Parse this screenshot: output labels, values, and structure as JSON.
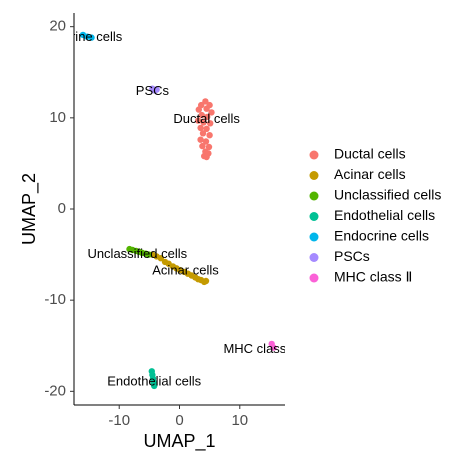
{
  "chart_data": {
    "type": "scatter",
    "title": "",
    "xlabel": "UMAP_1",
    "ylabel": "UMAP_2",
    "xlim": [
      -17.5,
      17.5
    ],
    "ylim": [
      -21.5,
      21.5
    ],
    "x_ticks": [
      -10,
      0,
      10
    ],
    "y_ticks": [
      -20,
      -10,
      0,
      10,
      20
    ],
    "x_tick_labels": [
      "-10",
      "0",
      "10"
    ],
    "y_tick_labels": [
      "-20",
      "-10",
      "0",
      "10",
      "20"
    ],
    "grid": false,
    "legend_position": "right",
    "series": [
      {
        "name": "Ductal cells",
        "color": "#F8766D",
        "points": [
          [
            3.6,
            11.4
          ],
          [
            4.3,
            11.8
          ],
          [
            5.0,
            11.4
          ],
          [
            3.2,
            10.9
          ],
          [
            4.5,
            11.0
          ],
          [
            5.3,
            10.6
          ],
          [
            3.7,
            10.3
          ],
          [
            4.6,
            10.1
          ],
          [
            3.1,
            9.7
          ],
          [
            4.0,
            9.5
          ],
          [
            5.1,
            9.4
          ],
          [
            3.5,
            8.9
          ],
          [
            4.5,
            8.8
          ],
          [
            3.9,
            8.3
          ],
          [
            5.0,
            8.1
          ],
          [
            3.5,
            7.6
          ],
          [
            4.4,
            7.4
          ],
          [
            3.8,
            6.9
          ],
          [
            4.9,
            6.8
          ],
          [
            4.3,
            6.3
          ],
          [
            4.1,
            5.8
          ],
          [
            4.8,
            6.1
          ],
          [
            4.5,
            5.7
          ]
        ],
        "label": "Ductal cells",
        "label_xy": [
          4.5,
          9.8
        ]
      },
      {
        "name": "Acinar cells",
        "color": "#C49A00",
        "points": [
          [
            -4.5,
            -5.0
          ],
          [
            -3.8,
            -5.2
          ],
          [
            -3.1,
            -5.4
          ],
          [
            -2.4,
            -5.8
          ],
          [
            -1.8,
            -6.0
          ],
          [
            -1.1,
            -6.3
          ],
          [
            -0.5,
            -6.5
          ],
          [
            0.1,
            -6.7
          ],
          [
            0.8,
            -6.9
          ],
          [
            1.4,
            -7.1
          ],
          [
            2.0,
            -7.3
          ],
          [
            2.6,
            -7.5
          ],
          [
            3.1,
            -7.7
          ],
          [
            3.6,
            -7.8
          ],
          [
            4.1,
            -8.0
          ],
          [
            4.4,
            -7.9
          ]
        ],
        "label": "Acinar cells",
        "label_xy": [
          1.0,
          -6.8
        ]
      },
      {
        "name": "Unclassified cells",
        "color": "#53B400",
        "points": [
          [
            -8.3,
            -4.4
          ],
          [
            -7.8,
            -4.5
          ],
          [
            -7.2,
            -4.6
          ],
          [
            -6.7,
            -4.7
          ],
          [
            -6.2,
            -4.8
          ],
          [
            -5.6,
            -4.9
          ],
          [
            -5.1,
            -5.0
          ]
        ],
        "label": "Unclassified cells",
        "label_xy": [
          -7.0,
          -5.0
        ]
      },
      {
        "name": "Endothelial cells",
        "color": "#00C094",
        "points": [
          [
            -4.6,
            -17.8
          ],
          [
            -4.5,
            -18.2
          ],
          [
            -4.4,
            -18.6
          ],
          [
            -4.3,
            -19.0
          ],
          [
            -4.2,
            -19.4
          ]
        ],
        "label": "Endothelial cells",
        "label_xy": [
          -4.2,
          -19.0
        ]
      },
      {
        "name": "Endocrine cells",
        "color": "#00B6EB",
        "points": [
          [
            -16.0,
            19.1
          ],
          [
            -15.3,
            18.9
          ],
          [
            -14.6,
            18.8
          ]
        ],
        "label": "Endocrine cells",
        "label_xy": [
          -16.8,
          18.8
        ]
      },
      {
        "name": "PSCs",
        "color": "#A58AFF",
        "points": [
          [
            -4.5,
            13.2
          ],
          [
            -4.1,
            13.0
          ],
          [
            -3.8,
            13.1
          ]
        ],
        "label": "PSCs",
        "label_xy": [
          -4.5,
          12.9
        ]
      },
      {
        "name": "MHC class Ⅱ",
        "color": "#FB61D7",
        "points": [
          [
            15.3,
            -14.8
          ],
          [
            15.6,
            -15.2
          ]
        ],
        "label": "MHC class",
        "label_xy": [
          12.5,
          -15.4
        ]
      }
    ]
  }
}
